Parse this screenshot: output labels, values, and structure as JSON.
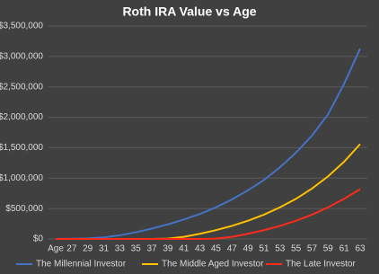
{
  "chart_data": {
    "type": "line",
    "title": "Roth IRA Value vs Age",
    "categories": [
      "Age",
      "27",
      "29",
      "31",
      "33",
      "35",
      "37",
      "39",
      "41",
      "43",
      "45",
      "47",
      "49",
      "51",
      "53",
      "55",
      "57",
      "59",
      "61",
      "63"
    ],
    "series": [
      {
        "name": "The Millennial Investor",
        "color": "#4472c4",
        "values": [
          0,
          3000,
          10000,
          25000,
          60000,
          110000,
          170000,
          240000,
          320000,
          410000,
          520000,
          650000,
          800000,
          970000,
          1180000,
          1420000,
          1700000,
          2050000,
          2550000,
          3130000
        ]
      },
      {
        "name": "The Middle Aged Investor",
        "color": "#ffc000",
        "values": [
          0,
          0,
          0,
          0,
          0,
          0,
          0,
          5000,
          35000,
          85000,
          145000,
          215000,
          300000,
          400000,
          520000,
          660000,
          830000,
          1030000,
          1270000,
          1560000
        ]
      },
      {
        "name": "The Late Investor",
        "color": "#ff2a1a",
        "values": [
          0,
          0,
          0,
          0,
          0,
          0,
          0,
          0,
          0,
          0,
          5000,
          35000,
          85000,
          145000,
          215000,
          300000,
          400000,
          520000,
          660000,
          820000
        ]
      }
    ],
    "ylim": [
      0,
      3500000
    ],
    "yticks": [
      {
        "value": 0,
        "label": "$0"
      },
      {
        "value": 500000,
        "label": "$500,000"
      },
      {
        "value": 1000000,
        "label": "$1,000,000"
      },
      {
        "value": 1500000,
        "label": "$1,500,000"
      },
      {
        "value": 2000000,
        "label": "$2,000,000"
      },
      {
        "value": 2500000,
        "label": "$2,500,000"
      },
      {
        "value": 3000000,
        "label": "$3,000,000"
      },
      {
        "value": 3500000,
        "label": "$3,500,000"
      }
    ],
    "grid": true,
    "legend": "bottom"
  }
}
